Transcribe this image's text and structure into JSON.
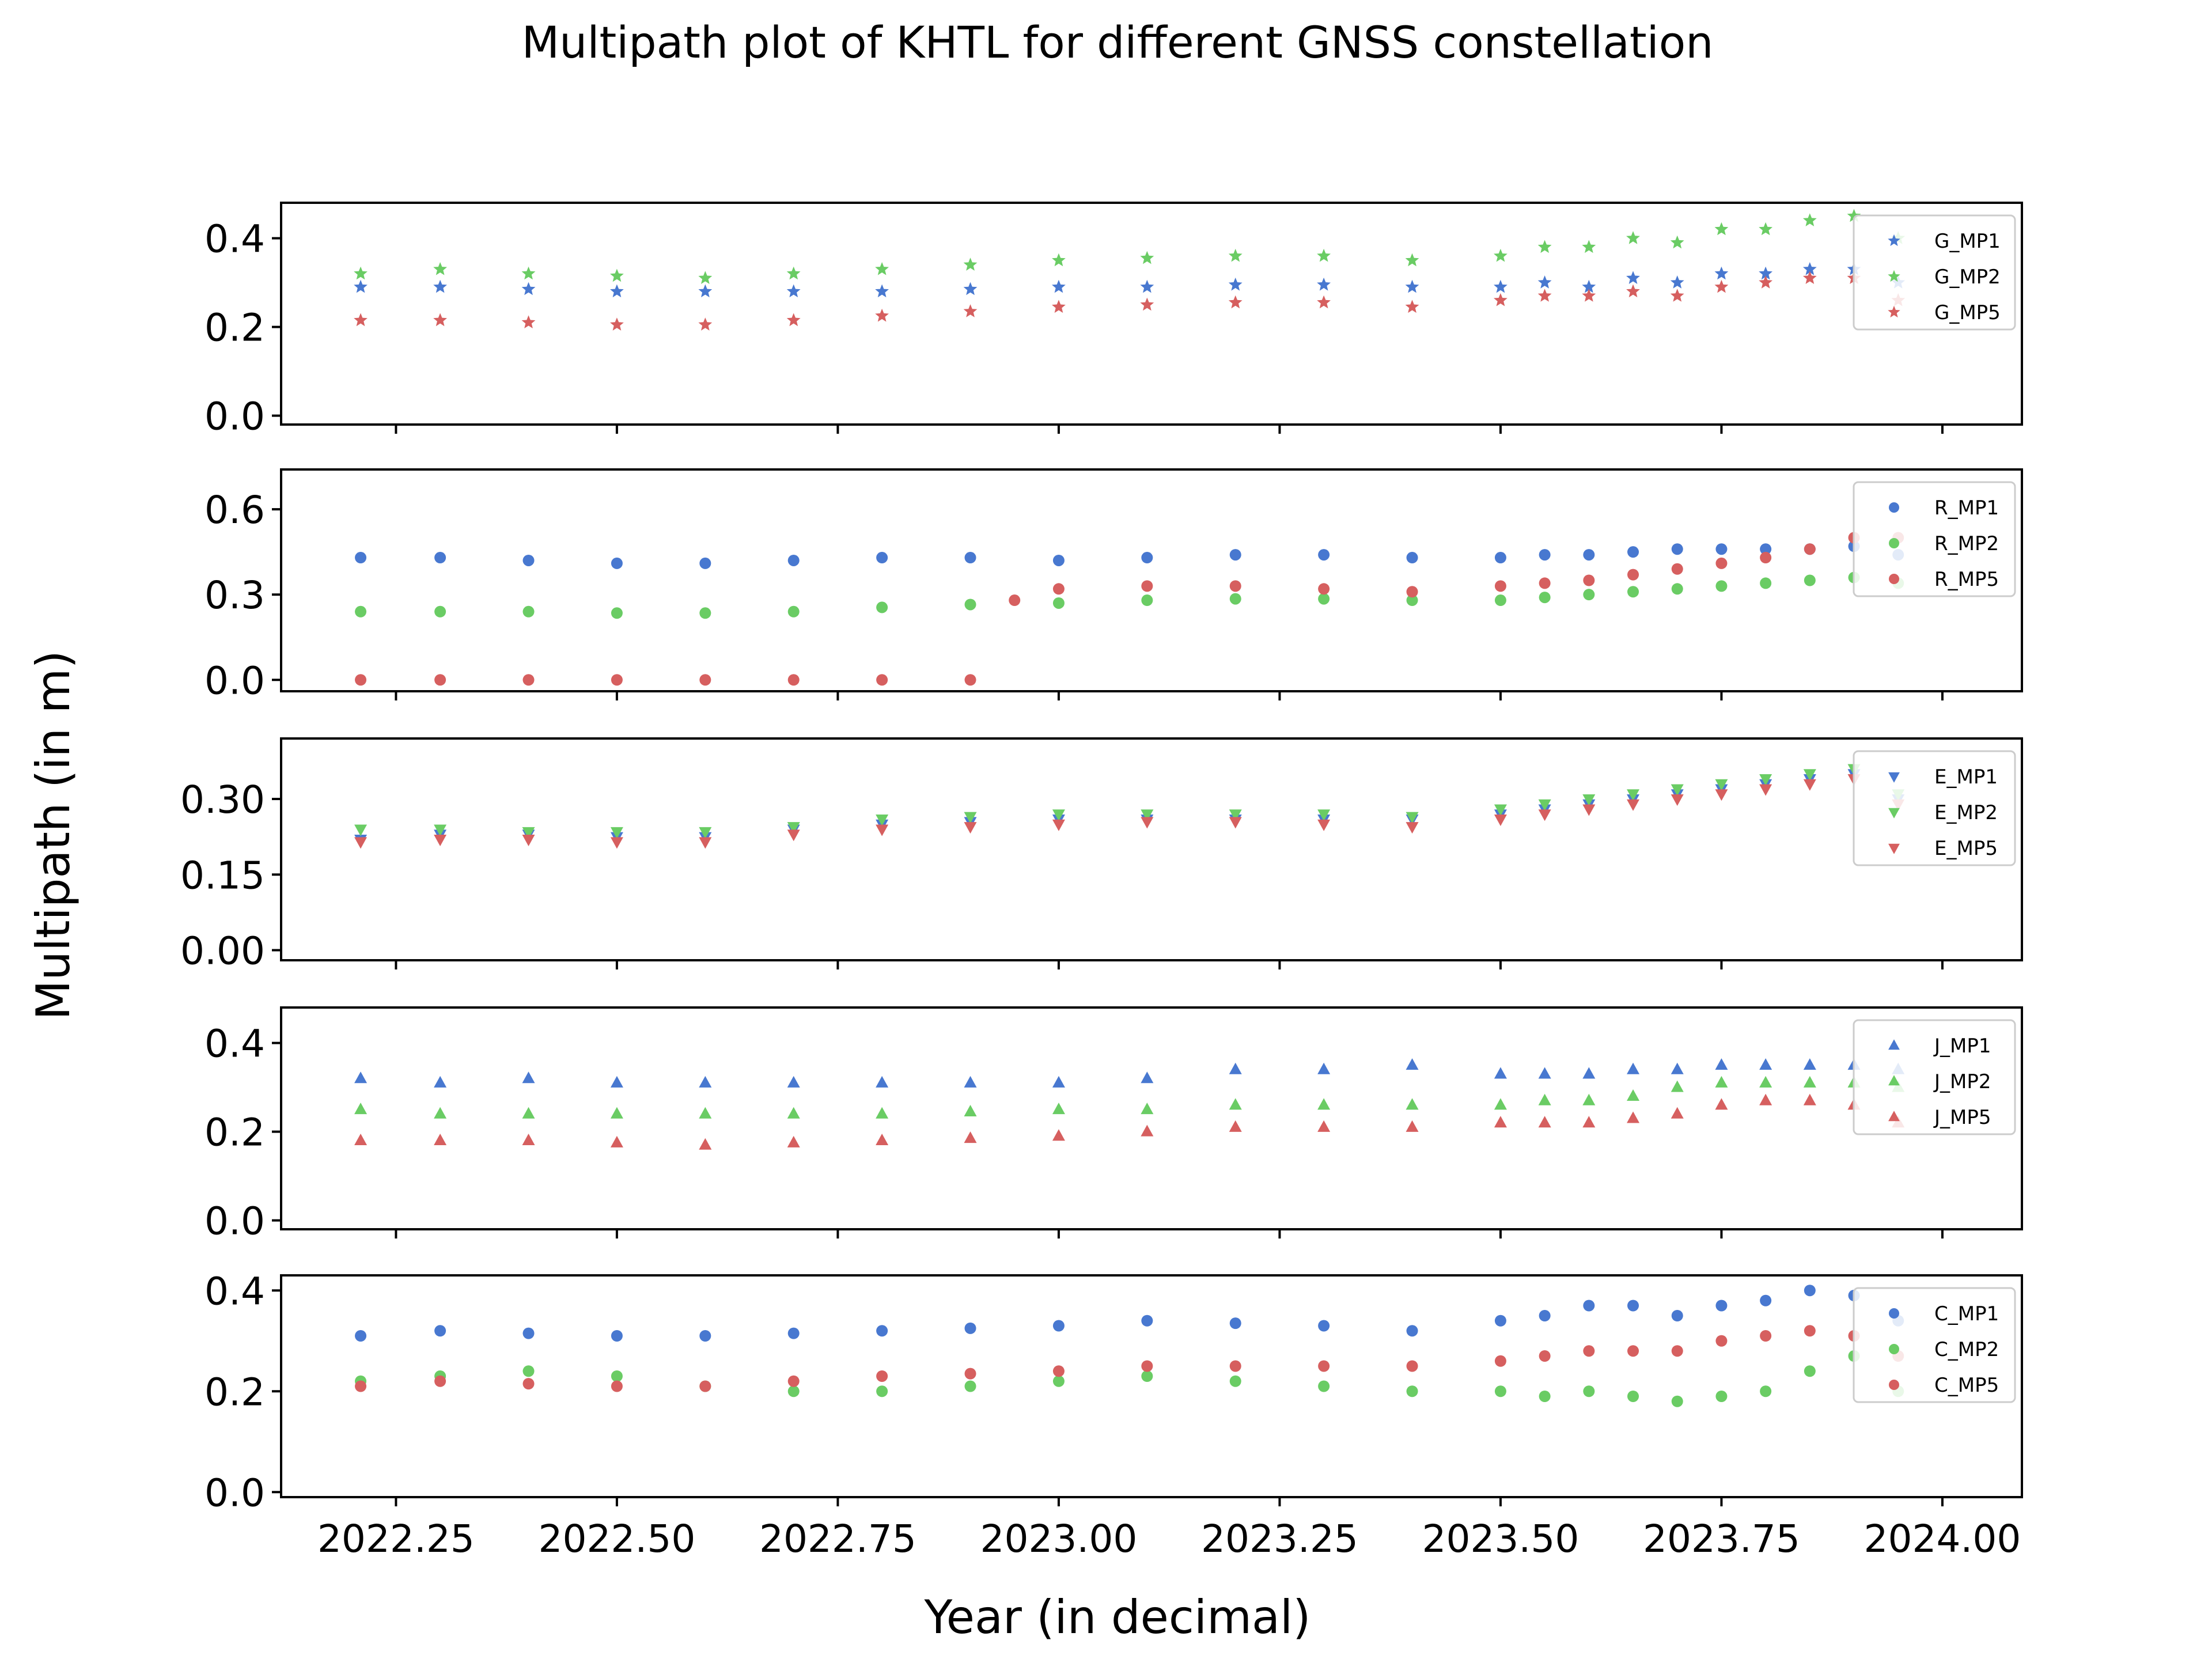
{
  "chart_data": {
    "type": "scatter",
    "title": "Multipath plot of KHTL for different GNSS constellation",
    "xlabel": "Year (in decimal)",
    "ylabel": "Multipath (in m)",
    "xlim": [
      2022.12,
      2024.09
    ],
    "xticks": [
      "2022.25",
      "2022.50",
      "2022.75",
      "2023.00",
      "2023.25",
      "2023.50",
      "2023.75",
      "2024.00"
    ],
    "xtick_values": [
      2022.25,
      2022.5,
      2022.75,
      2023.0,
      2023.25,
      2023.5,
      2023.75,
      2024.0
    ],
    "legend_placement": "upper-right",
    "marker_colors": {
      "MP1": "#4878d0",
      "MP2": "#6acc64",
      "MP5": "#d65f5f"
    },
    "panels": [
      {
        "constellation": "G",
        "marker": "star",
        "ylim": [
          -0.02,
          0.48
        ],
        "yticks": [
          "0.0",
          "0.2",
          "0.4"
        ],
        "ytick_values": [
          0.0,
          0.2,
          0.4
        ],
        "series": [
          {
            "name": "G_MP1",
            "x": [
              2022.21,
              2022.3,
              2022.4,
              2022.5,
              2022.6,
              2022.7,
              2022.8,
              2022.9,
              2023.0,
              2023.1,
              2023.2,
              2023.3,
              2023.4,
              2023.5,
              2023.55,
              2023.6,
              2023.65,
              2023.7,
              2023.75,
              2023.8,
              2023.85,
              2023.9,
              2023.95
            ],
            "y": [
              0.29,
              0.29,
              0.285,
              0.28,
              0.28,
              0.28,
              0.28,
              0.285,
              0.29,
              0.29,
              0.295,
              0.295,
              0.29,
              0.29,
              0.3,
              0.29,
              0.31,
              0.3,
              0.32,
              0.32,
              0.33,
              0.33,
              0.3
            ]
          },
          {
            "name": "G_MP2",
            "x": [
              2022.21,
              2022.3,
              2022.4,
              2022.5,
              2022.6,
              2022.7,
              2022.8,
              2022.9,
              2023.0,
              2023.1,
              2023.2,
              2023.3,
              2023.4,
              2023.5,
              2023.55,
              2023.6,
              2023.65,
              2023.7,
              2023.75,
              2023.8,
              2023.85,
              2023.9,
              2023.95
            ],
            "y": [
              0.32,
              0.33,
              0.32,
              0.315,
              0.31,
              0.32,
              0.33,
              0.34,
              0.35,
              0.355,
              0.36,
              0.36,
              0.35,
              0.36,
              0.38,
              0.38,
              0.4,
              0.39,
              0.42,
              0.42,
              0.44,
              0.45,
              0.4
            ]
          },
          {
            "name": "G_MP5",
            "x": [
              2022.21,
              2022.3,
              2022.4,
              2022.5,
              2022.6,
              2022.7,
              2022.8,
              2022.9,
              2023.0,
              2023.1,
              2023.2,
              2023.3,
              2023.4,
              2023.5,
              2023.55,
              2023.6,
              2023.65,
              2023.7,
              2023.75,
              2023.8,
              2023.85,
              2023.9,
              2023.95
            ],
            "y": [
              0.215,
              0.215,
              0.21,
              0.205,
              0.205,
              0.215,
              0.225,
              0.235,
              0.245,
              0.25,
              0.255,
              0.255,
              0.245,
              0.26,
              0.27,
              0.27,
              0.28,
              0.27,
              0.29,
              0.3,
              0.31,
              0.31,
              0.26
            ]
          }
        ]
      },
      {
        "constellation": "R",
        "marker": "circle",
        "ylim": [
          -0.04,
          0.74
        ],
        "yticks": [
          "0.0",
          "0.3",
          "0.6"
        ],
        "ytick_values": [
          0.0,
          0.3,
          0.6
        ],
        "series": [
          {
            "name": "R_MP1",
            "x": [
              2022.21,
              2022.3,
              2022.4,
              2022.5,
              2022.6,
              2022.7,
              2022.8,
              2022.9,
              2023.0,
              2023.1,
              2023.2,
              2023.3,
              2023.4,
              2023.5,
              2023.55,
              2023.6,
              2023.65,
              2023.7,
              2023.75,
              2023.8,
              2023.85,
              2023.9,
              2023.95
            ],
            "y": [
              0.43,
              0.43,
              0.42,
              0.41,
              0.41,
              0.42,
              0.43,
              0.43,
              0.42,
              0.43,
              0.44,
              0.44,
              0.43,
              0.43,
              0.44,
              0.44,
              0.45,
              0.46,
              0.46,
              0.46,
              0.46,
              0.47,
              0.44
            ]
          },
          {
            "name": "R_MP2",
            "x": [
              2022.21,
              2022.3,
              2022.4,
              2022.5,
              2022.6,
              2022.7,
              2022.8,
              2022.9,
              2023.0,
              2023.1,
              2023.2,
              2023.3,
              2023.4,
              2023.5,
              2023.55,
              2023.6,
              2023.65,
              2023.7,
              2023.75,
              2023.8,
              2023.85,
              2023.9,
              2023.95
            ],
            "y": [
              0.24,
              0.24,
              0.24,
              0.235,
              0.235,
              0.24,
              0.255,
              0.265,
              0.27,
              0.28,
              0.285,
              0.285,
              0.28,
              0.28,
              0.29,
              0.3,
              0.31,
              0.32,
              0.33,
              0.34,
              0.35,
              0.36,
              0.34
            ]
          },
          {
            "name": "R_MP5",
            "x": [
              2022.21,
              2022.3,
              2022.4,
              2022.5,
              2022.6,
              2022.7,
              2022.8,
              2022.9,
              2022.95,
              2023.0,
              2023.1,
              2023.2,
              2023.3,
              2023.4,
              2023.5,
              2023.55,
              2023.6,
              2023.65,
              2023.7,
              2023.75,
              2023.8,
              2023.85,
              2023.9,
              2023.95
            ],
            "y": [
              0.0,
              0.0,
              0.0,
              0.0,
              0.0,
              0.0,
              0.0,
              0.0,
              0.28,
              0.32,
              0.33,
              0.33,
              0.32,
              0.31,
              0.33,
              0.34,
              0.35,
              0.37,
              0.39,
              0.41,
              0.43,
              0.46,
              0.5,
              0.5
            ]
          }
        ]
      },
      {
        "constellation": "E",
        "marker": "triangle-down",
        "ylim": [
          -0.02,
          0.42
        ],
        "yticks": [
          "0.00",
          "0.15",
          "0.30"
        ],
        "ytick_values": [
          0.0,
          0.15,
          0.3
        ],
        "series": [
          {
            "name": "E_MP1",
            "x": [
              2022.21,
              2022.3,
              2022.4,
              2022.5,
              2022.6,
              2022.7,
              2022.8,
              2022.9,
              2023.0,
              2023.1,
              2023.2,
              2023.3,
              2023.4,
              2023.5,
              2023.55,
              2023.6,
              2023.65,
              2023.7,
              2023.75,
              2023.8,
              2023.85,
              2023.9,
              2023.95
            ],
            "y": [
              0.22,
              0.23,
              0.23,
              0.225,
              0.225,
              0.24,
              0.25,
              0.255,
              0.26,
              0.26,
              0.26,
              0.26,
              0.26,
              0.27,
              0.28,
              0.29,
              0.3,
              0.31,
              0.32,
              0.33,
              0.34,
              0.35,
              0.3
            ]
          },
          {
            "name": "E_MP2",
            "x": [
              2022.21,
              2022.3,
              2022.4,
              2022.5,
              2022.6,
              2022.7,
              2022.8,
              2022.9,
              2023.0,
              2023.1,
              2023.2,
              2023.3,
              2023.4,
              2023.5,
              2023.55,
              2023.6,
              2023.65,
              2023.7,
              2023.75,
              2023.8,
              2023.85,
              2023.9,
              2023.95
            ],
            "y": [
              0.24,
              0.24,
              0.235,
              0.235,
              0.235,
              0.245,
              0.26,
              0.265,
              0.27,
              0.27,
              0.27,
              0.27,
              0.265,
              0.28,
              0.29,
              0.3,
              0.31,
              0.32,
              0.33,
              0.34,
              0.35,
              0.36,
              0.31
            ]
          },
          {
            "name": "E_MP5",
            "x": [
              2022.21,
              2022.3,
              2022.4,
              2022.5,
              2022.6,
              2022.7,
              2022.8,
              2022.9,
              2023.0,
              2023.1,
              2023.2,
              2023.3,
              2023.4,
              2023.5,
              2023.55,
              2023.6,
              2023.65,
              2023.7,
              2023.75,
              2023.8,
              2023.85,
              2023.9,
              2023.95
            ],
            "y": [
              0.215,
              0.22,
              0.22,
              0.215,
              0.215,
              0.23,
              0.24,
              0.245,
              0.25,
              0.255,
              0.255,
              0.25,
              0.245,
              0.26,
              0.27,
              0.28,
              0.29,
              0.3,
              0.31,
              0.32,
              0.33,
              0.34,
              0.29
            ]
          }
        ]
      },
      {
        "constellation": "J",
        "marker": "triangle-up",
        "ylim": [
          -0.02,
          0.48
        ],
        "yticks": [
          "0.0",
          "0.2",
          "0.4"
        ],
        "ytick_values": [
          0.0,
          0.2,
          0.4
        ],
        "series": [
          {
            "name": "J_MP1",
            "x": [
              2022.21,
              2022.3,
              2022.4,
              2022.5,
              2022.6,
              2022.7,
              2022.8,
              2022.9,
              2023.0,
              2023.1,
              2023.2,
              2023.3,
              2023.4,
              2023.5,
              2023.55,
              2023.6,
              2023.65,
              2023.7,
              2023.75,
              2023.8,
              2023.85,
              2023.9,
              2023.95
            ],
            "y": [
              0.32,
              0.31,
              0.32,
              0.31,
              0.31,
              0.31,
              0.31,
              0.31,
              0.31,
              0.32,
              0.34,
              0.34,
              0.35,
              0.33,
              0.33,
              0.33,
              0.34,
              0.34,
              0.35,
              0.35,
              0.35,
              0.35,
              0.34
            ]
          },
          {
            "name": "J_MP2",
            "x": [
              2022.21,
              2022.3,
              2022.4,
              2022.5,
              2022.6,
              2022.7,
              2022.8,
              2022.9,
              2023.0,
              2023.1,
              2023.2,
              2023.3,
              2023.4,
              2023.5,
              2023.55,
              2023.6,
              2023.65,
              2023.7,
              2023.75,
              2023.8,
              2023.85,
              2023.9,
              2023.95
            ],
            "y": [
              0.25,
              0.24,
              0.24,
              0.24,
              0.24,
              0.24,
              0.24,
              0.245,
              0.25,
              0.25,
              0.26,
              0.26,
              0.26,
              0.26,
              0.27,
              0.27,
              0.28,
              0.3,
              0.31,
              0.31,
              0.31,
              0.31,
              0.3
            ]
          },
          {
            "name": "J_MP5",
            "x": [
              2022.21,
              2022.3,
              2022.4,
              2022.5,
              2022.6,
              2022.7,
              2022.8,
              2022.9,
              2023.0,
              2023.1,
              2023.2,
              2023.3,
              2023.4,
              2023.5,
              2023.55,
              2023.6,
              2023.65,
              2023.7,
              2023.75,
              2023.8,
              2023.85,
              2023.9,
              2023.95
            ],
            "y": [
              0.18,
              0.18,
              0.18,
              0.175,
              0.17,
              0.175,
              0.18,
              0.185,
              0.19,
              0.2,
              0.21,
              0.21,
              0.21,
              0.22,
              0.22,
              0.22,
              0.23,
              0.24,
              0.26,
              0.27,
              0.27,
              0.26,
              0.22
            ]
          }
        ]
      },
      {
        "constellation": "C",
        "marker": "circle",
        "ylim": [
          -0.01,
          0.43
        ],
        "yticks": [
          "0.0",
          "0.2",
          "0.4"
        ],
        "ytick_values": [
          0.0,
          0.2,
          0.4
        ],
        "series": [
          {
            "name": "C_MP1",
            "x": [
              2022.21,
              2022.3,
              2022.4,
              2022.5,
              2022.6,
              2022.7,
              2022.8,
              2022.9,
              2023.0,
              2023.1,
              2023.2,
              2023.3,
              2023.4,
              2023.5,
              2023.55,
              2023.6,
              2023.65,
              2023.7,
              2023.75,
              2023.8,
              2023.85,
              2023.9,
              2023.95
            ],
            "y": [
              0.31,
              0.32,
              0.315,
              0.31,
              0.31,
              0.315,
              0.32,
              0.325,
              0.33,
              0.34,
              0.335,
              0.33,
              0.32,
              0.34,
              0.35,
              0.37,
              0.37,
              0.35,
              0.37,
              0.38,
              0.4,
              0.39,
              0.34
            ]
          },
          {
            "name": "C_MP2",
            "x": [
              2022.21,
              2022.3,
              2022.4,
              2022.5,
              2022.6,
              2022.7,
              2022.8,
              2022.9,
              2023.0,
              2023.1,
              2023.2,
              2023.3,
              2023.4,
              2023.5,
              2023.55,
              2023.6,
              2023.65,
              2023.7,
              2023.75,
              2023.8,
              2023.85,
              2023.9,
              2023.95
            ],
            "y": [
              0.22,
              0.23,
              0.24,
              0.23,
              0.21,
              0.2,
              0.2,
              0.21,
              0.22,
              0.23,
              0.22,
              0.21,
              0.2,
              0.2,
              0.19,
              0.2,
              0.19,
              0.18,
              0.19,
              0.2,
              0.24,
              0.27,
              0.2
            ]
          },
          {
            "name": "C_MP5",
            "x": [
              2022.21,
              2022.3,
              2022.4,
              2022.5,
              2022.6,
              2022.7,
              2022.8,
              2022.9,
              2023.0,
              2023.1,
              2023.2,
              2023.3,
              2023.4,
              2023.5,
              2023.55,
              2023.6,
              2023.65,
              2023.7,
              2023.75,
              2023.8,
              2023.85,
              2023.9,
              2023.95
            ],
            "y": [
              0.21,
              0.22,
              0.215,
              0.21,
              0.21,
              0.22,
              0.23,
              0.235,
              0.24,
              0.25,
              0.25,
              0.25,
              0.25,
              0.26,
              0.27,
              0.28,
              0.28,
              0.28,
              0.3,
              0.31,
              0.32,
              0.31,
              0.27
            ]
          }
        ]
      }
    ]
  }
}
